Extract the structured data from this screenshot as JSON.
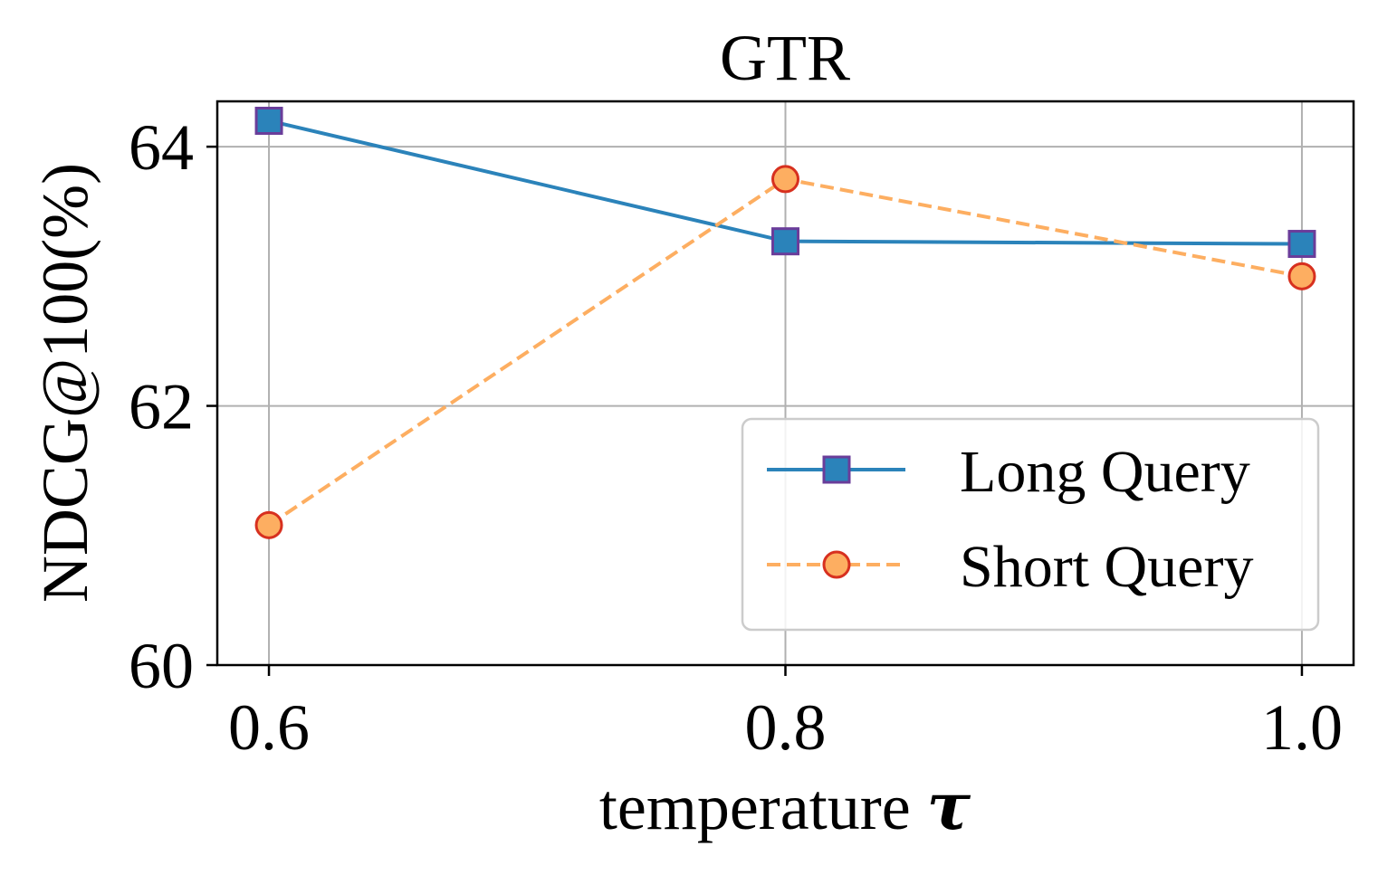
{
  "chart_data": {
    "type": "line",
    "title": "GTR",
    "xlabel": "temperature",
    "xlabel_symbol": "τ",
    "ylabel": "NDCG@100(%)",
    "x": [
      0.6,
      0.8,
      1.0
    ],
    "x_tick_labels": [
      "0.6",
      "0.8",
      "1.0"
    ],
    "y_ticks": [
      60,
      62,
      64
    ],
    "y_tick_labels": [
      "60",
      "62",
      "64"
    ],
    "xlim": [
      0.58,
      1.02
    ],
    "ylim": [
      60,
      64.35
    ],
    "grid": true,
    "legend_position": "bottom-right",
    "series": [
      {
        "name": "Long Query",
        "values": [
          64.2,
          63.27,
          63.25
        ],
        "line_color": "#2b83ba",
        "line_style": "solid",
        "marker": "square",
        "marker_face": "#2b83ba",
        "marker_edge": "#6a3d9a"
      },
      {
        "name": "Short Query",
        "values": [
          61.08,
          63.75,
          63.0
        ],
        "line_color": "#fdae61",
        "line_style": "dashed",
        "marker": "circle",
        "marker_face": "#fdae61",
        "marker_edge": "#d7301f"
      }
    ]
  }
}
